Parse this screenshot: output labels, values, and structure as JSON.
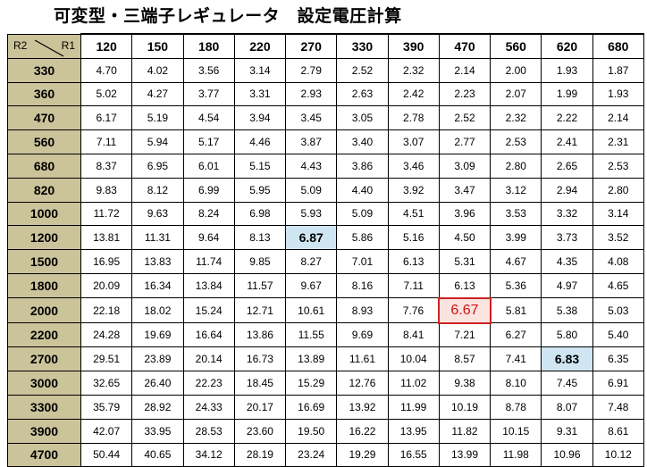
{
  "title": "可変型・三端子レギュレータ　設定電圧計算",
  "corner": {
    "r2_label": "R2",
    "r1_label": "R1"
  },
  "columns": [
    "120",
    "150",
    "180",
    "220",
    "270",
    "330",
    "390",
    "470",
    "560",
    "620",
    "680"
  ],
  "rows": [
    {
      "r2": "330",
      "values": [
        "4.70",
        "4.02",
        "3.56",
        "3.14",
        "2.79",
        "2.52",
        "2.32",
        "2.14",
        "2.00",
        "1.93",
        "1.87"
      ]
    },
    {
      "r2": "360",
      "values": [
        "5.02",
        "4.27",
        "3.77",
        "3.31",
        "2.93",
        "2.63",
        "2.42",
        "2.23",
        "2.07",
        "1.99",
        "1.93"
      ]
    },
    {
      "r2": "470",
      "values": [
        "6.17",
        "5.19",
        "4.54",
        "3.94",
        "3.45",
        "3.05",
        "2.78",
        "2.52",
        "2.32",
        "2.22",
        "2.14"
      ]
    },
    {
      "r2": "560",
      "values": [
        "7.11",
        "5.94",
        "5.17",
        "4.46",
        "3.87",
        "3.40",
        "3.07",
        "2.77",
        "2.53",
        "2.41",
        "2.31"
      ]
    },
    {
      "r2": "680",
      "values": [
        "8.37",
        "6.95",
        "6.01",
        "5.15",
        "4.43",
        "3.86",
        "3.46",
        "3.09",
        "2.80",
        "2.65",
        "2.53"
      ]
    },
    {
      "r2": "820",
      "values": [
        "9.83",
        "8.12",
        "6.99",
        "5.95",
        "5.09",
        "4.40",
        "3.92",
        "3.47",
        "3.12",
        "2.94",
        "2.80"
      ]
    },
    {
      "r2": "1000",
      "values": [
        "11.72",
        "9.63",
        "8.24",
        "6.98",
        "5.93",
        "5.09",
        "4.51",
        "3.96",
        "3.53",
        "3.32",
        "3.14"
      ]
    },
    {
      "r2": "1200",
      "values": [
        "13.81",
        "11.31",
        "9.64",
        "8.13",
        "6.87",
        "5.86",
        "5.16",
        "4.50",
        "3.99",
        "3.73",
        "3.52"
      ]
    },
    {
      "r2": "1500",
      "values": [
        "16.95",
        "13.83",
        "11.74",
        "9.85",
        "8.27",
        "7.01",
        "6.13",
        "5.31",
        "4.67",
        "4.35",
        "4.08"
      ]
    },
    {
      "r2": "1800",
      "values": [
        "20.09",
        "16.34",
        "13.84",
        "11.57",
        "9.67",
        "8.16",
        "7.11",
        "6.13",
        "5.36",
        "4.97",
        "4.65"
      ]
    },
    {
      "r2": "2000",
      "values": [
        "22.18",
        "18.02",
        "15.24",
        "12.71",
        "10.61",
        "8.93",
        "7.76",
        "6.67",
        "5.81",
        "5.38",
        "5.03"
      ]
    },
    {
      "r2": "2200",
      "values": [
        "24.28",
        "19.69",
        "16.64",
        "13.86",
        "11.55",
        "9.69",
        "8.41",
        "7.21",
        "6.27",
        "5.80",
        "5.40"
      ]
    },
    {
      "r2": "2700",
      "values": [
        "29.51",
        "23.89",
        "20.14",
        "16.73",
        "13.89",
        "11.61",
        "10.04",
        "8.57",
        "7.41",
        "6.83",
        "6.35"
      ]
    },
    {
      "r2": "3000",
      "values": [
        "32.65",
        "26.40",
        "22.23",
        "18.45",
        "15.29",
        "12.76",
        "11.02",
        "9.38",
        "8.10",
        "7.45",
        "6.91"
      ]
    },
    {
      "r2": "3300",
      "values": [
        "35.79",
        "28.92",
        "24.33",
        "20.17",
        "16.69",
        "13.92",
        "11.99",
        "10.19",
        "8.78",
        "8.07",
        "7.48"
      ]
    },
    {
      "r2": "3900",
      "values": [
        "42.07",
        "33.95",
        "28.53",
        "23.60",
        "19.50",
        "16.22",
        "13.95",
        "11.82",
        "10.15",
        "9.31",
        "8.61"
      ]
    },
    {
      "r2": "4700",
      "values": [
        "50.44",
        "40.65",
        "34.12",
        "28.19",
        "23.24",
        "19.29",
        "16.55",
        "13.99",
        "11.98",
        "10.96",
        "10.12"
      ]
    }
  ],
  "highlights": [
    {
      "row": 7,
      "col": 4,
      "style": "blue"
    },
    {
      "row": 10,
      "col": 7,
      "style": "red"
    },
    {
      "row": 12,
      "col": 9,
      "style": "blue"
    }
  ],
  "colors": {
    "header_bg": "#cbc39a",
    "blue_highlight": "#cfe6f2",
    "red_highlight_bg": "#fbe3e0",
    "red_text": "#cc1111"
  }
}
